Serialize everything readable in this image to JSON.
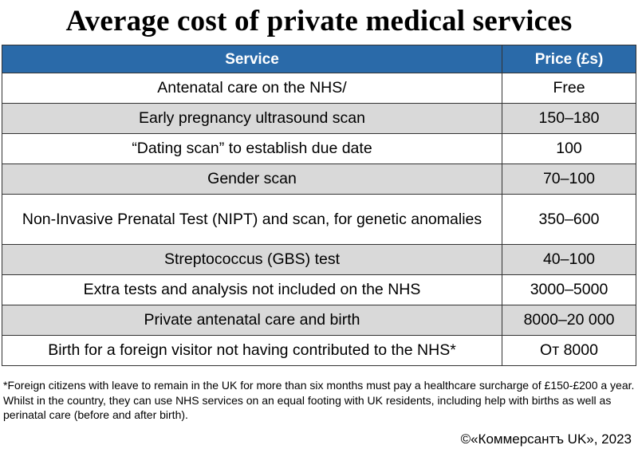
{
  "title": "Average cost of private medical services",
  "table": {
    "headers": [
      "Service",
      "Price (£s)"
    ],
    "rows": [
      {
        "service": "Antenatal care on the NHS/",
        "price": "Free"
      },
      {
        "service": "Early pregnancy ultrasound scan",
        "price": "150–180"
      },
      {
        "service": "“Dating scan” to establish due date",
        "price": "100"
      },
      {
        "service": "Gender scan",
        "price": "70–100"
      },
      {
        "service": "Non-Invasive Prenatal Test (NIPT) and scan, for genetic anomalies",
        "price": "350–600"
      },
      {
        "service": "Streptococcus (GBS) test",
        "price": "40–100"
      },
      {
        "service": "Extra tests and analysis not included on the NHS",
        "price": "3000–5000"
      },
      {
        "service": "Private antenatal care and birth",
        "price": "8000–20 000"
      },
      {
        "service": "Birth for a foreign visitor not having contributed to the NHS*",
        "price": "От 8000"
      }
    ]
  },
  "footnote": "*Foreign citizens with leave to remain in the UK for more than six months must pay a healthcare surcharge of £150-£200 a year. Whilst in the country, they can use NHS services on an equal footing with UK residents, including help with births as well as perinatal care (before and after birth).",
  "credit": "©«Коммерсантъ UK», 2023",
  "colors": {
    "header_bg": "#2a6aa9",
    "stripe": "#d9d9d9"
  }
}
